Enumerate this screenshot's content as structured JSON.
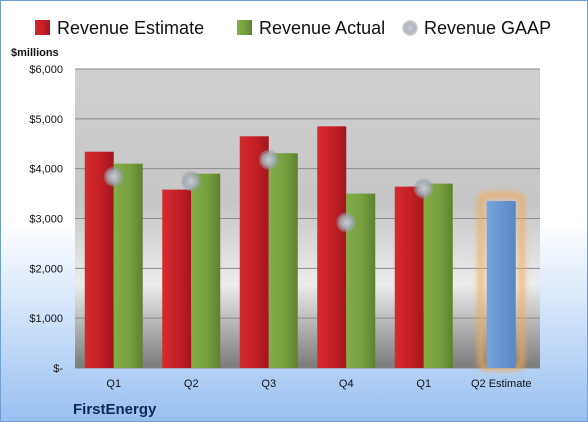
{
  "chart_data": {
    "type": "bar",
    "ylabel": "$millions",
    "categories": [
      "Q1",
      "Q2",
      "Q3",
      "Q4",
      "Q1",
      "Q2 Estimate"
    ],
    "y_ticks": [
      "$-",
      "$1,000",
      "$2,000",
      "$3,000",
      "$4,000",
      "$5,000",
      "$6,000"
    ],
    "ylim": [
      0,
      6000
    ],
    "grid": true,
    "legend_position": "top",
    "series": [
      {
        "name": "Revenue Estimate",
        "type": "bar",
        "color": "#cc2229",
        "values": [
          4340,
          3580,
          4650,
          4850,
          3640,
          null
        ]
      },
      {
        "name": "Revenue Actual",
        "type": "bar",
        "color": "#78a040",
        "values": [
          4100,
          3900,
          4310,
          3500,
          3700,
          null
        ]
      },
      {
        "name": "Revenue GAAP",
        "type": "scatter",
        "color": "#9ba3ad",
        "values": [
          3840,
          3750,
          4180,
          2920,
          3600,
          null
        ]
      }
    ],
    "highlight": {
      "category": "Q2 Estimate",
      "value": 3350,
      "color": "#6b9ad6",
      "glow": "#f5a955"
    },
    "company": "FirstEnergy"
  }
}
